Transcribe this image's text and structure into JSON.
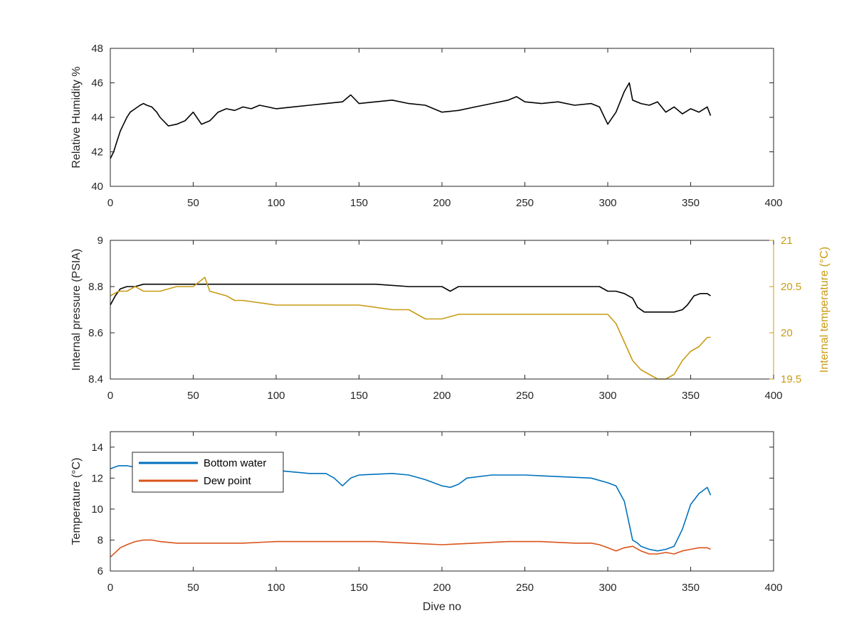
{
  "chart_data": [
    {
      "type": "line",
      "xlabel": "",
      "ylabel": "Relative Humidity %",
      "xlim": [
        0,
        400
      ],
      "ylim": [
        40,
        48
      ],
      "xticks": [
        0,
        50,
        100,
        150,
        200,
        250,
        300,
        350,
        400
      ],
      "yticks": [
        40,
        42,
        44,
        46,
        48
      ],
      "grid": false,
      "series": [
        {
          "color": "#000000",
          "x": [
            0,
            2,
            4,
            6,
            8,
            10,
            12,
            15,
            18,
            20,
            22,
            25,
            28,
            30,
            35,
            40,
            45,
            50,
            55,
            60,
            65,
            70,
            75,
            80,
            85,
            90,
            95,
            100,
            110,
            120,
            130,
            140,
            145,
            150,
            160,
            170,
            180,
            190,
            200,
            210,
            220,
            230,
            240,
            245,
            250,
            260,
            270,
            280,
            290,
            295,
            300,
            305,
            310,
            313,
            315,
            320,
            325,
            330,
            335,
            340,
            345,
            350,
            355,
            360,
            362
          ],
          "y": [
            41.6,
            42.0,
            42.6,
            43.2,
            43.6,
            44.0,
            44.3,
            44.5,
            44.7,
            44.8,
            44.7,
            44.6,
            44.3,
            44.0,
            43.5,
            43.6,
            43.8,
            44.3,
            43.6,
            43.8,
            44.3,
            44.5,
            44.4,
            44.6,
            44.5,
            44.7,
            44.6,
            44.5,
            44.6,
            44.7,
            44.8,
            44.9,
            45.3,
            44.8,
            44.9,
            45.0,
            44.8,
            44.7,
            44.3,
            44.4,
            44.6,
            44.8,
            45.0,
            45.2,
            44.9,
            44.8,
            44.9,
            44.7,
            44.8,
            44.6,
            43.6,
            44.3,
            45.5,
            46.0,
            45.0,
            44.8,
            44.7,
            44.9,
            44.3,
            44.6,
            44.2,
            44.5,
            44.3,
            44.6,
            44.1
          ]
        }
      ]
    },
    {
      "type": "line",
      "xlabel": "",
      "ylabel": "Internal pressure (PSIA)",
      "ylabel_right": "Internal temperature (°C)",
      "xlim": [
        0,
        400
      ],
      "ylim": [
        8.4,
        9
      ],
      "ylim_right": [
        19.5,
        21
      ],
      "xticks": [
        0,
        50,
        100,
        150,
        200,
        250,
        300,
        350,
        400
      ],
      "yticks": [
        "8.4",
        "8.6",
        "8.8",
        "9"
      ],
      "yticks_right": [
        "19.5",
        "20",
        "20.5",
        "21"
      ],
      "grid": false,
      "series": [
        {
          "axis": "left",
          "color": "#000000",
          "x": [
            0,
            3,
            6,
            10,
            15,
            20,
            30,
            40,
            50,
            60,
            70,
            80,
            90,
            100,
            120,
            140,
            160,
            180,
            200,
            205,
            210,
            220,
            240,
            260,
            280,
            295,
            300,
            305,
            310,
            315,
            318,
            322,
            330,
            340,
            345,
            348,
            352,
            356,
            360,
            362
          ],
          "y": [
            8.72,
            8.76,
            8.79,
            8.8,
            8.8,
            8.81,
            8.81,
            8.81,
            8.81,
            8.81,
            8.81,
            8.81,
            8.81,
            8.81,
            8.81,
            8.81,
            8.81,
            8.8,
            8.8,
            8.78,
            8.8,
            8.8,
            8.8,
            8.8,
            8.8,
            8.8,
            8.78,
            8.78,
            8.77,
            8.75,
            8.71,
            8.69,
            8.69,
            8.69,
            8.7,
            8.72,
            8.76,
            8.77,
            8.77,
            8.76
          ]
        },
        {
          "axis": "right",
          "color": "#C89B14",
          "x": [
            0,
            5,
            10,
            15,
            20,
            30,
            40,
            50,
            57,
            60,
            70,
            75,
            80,
            100,
            120,
            150,
            170,
            180,
            190,
            200,
            210,
            220,
            230,
            240,
            250,
            260,
            270,
            280,
            290,
            300,
            305,
            310,
            315,
            320,
            325,
            330,
            335,
            340,
            345,
            350,
            355,
            360,
            362
          ],
          "y": [
            20.4,
            20.45,
            20.45,
            20.5,
            20.45,
            20.45,
            20.5,
            20.5,
            20.6,
            20.45,
            20.4,
            20.35,
            20.35,
            20.3,
            20.3,
            20.3,
            20.25,
            20.25,
            20.15,
            20.15,
            20.2,
            20.2,
            20.2,
            20.2,
            20.2,
            20.2,
            20.2,
            20.2,
            20.2,
            20.2,
            20.1,
            19.9,
            19.7,
            19.6,
            19.55,
            19.5,
            19.5,
            19.55,
            19.7,
            19.8,
            19.85,
            19.95,
            19.95
          ]
        }
      ]
    },
    {
      "type": "line",
      "xlabel": "Dive no",
      "ylabel": "Temperature (°C)",
      "xlim": [
        0,
        400
      ],
      "ylim": [
        6,
        15
      ],
      "xticks": [
        0,
        50,
        100,
        150,
        200,
        250,
        300,
        350,
        400
      ],
      "yticks": [
        6,
        8,
        10,
        12,
        14
      ],
      "grid": false,
      "legend": "top-left",
      "series": [
        {
          "name": "Bottom water",
          "color": "#0072BD",
          "x": [
            0,
            5,
            10,
            15,
            20,
            40,
            60,
            80,
            100,
            120,
            130,
            135,
            140,
            145,
            150,
            170,
            180,
            190,
            200,
            205,
            210,
            215,
            230,
            250,
            270,
            290,
            300,
            305,
            310,
            313,
            315,
            318,
            320,
            325,
            330,
            335,
            340,
            345,
            350,
            355,
            360,
            362
          ],
          "y": [
            12.6,
            12.8,
            12.8,
            12.7,
            12.6,
            12.6,
            12.6,
            12.5,
            12.5,
            12.3,
            12.3,
            12.0,
            11.5,
            12.0,
            12.2,
            12.3,
            12.2,
            11.9,
            11.5,
            11.4,
            11.6,
            12.0,
            12.2,
            12.2,
            12.1,
            12.0,
            11.7,
            11.5,
            10.5,
            9.0,
            8.0,
            7.8,
            7.6,
            7.4,
            7.3,
            7.4,
            7.6,
            8.7,
            10.3,
            11.0,
            11.4,
            10.9
          ]
        },
        {
          "name": "Dew point",
          "color": "#D95319",
          "x": [
            0,
            3,
            6,
            10,
            15,
            20,
            25,
            30,
            40,
            60,
            80,
            100,
            120,
            140,
            160,
            180,
            200,
            220,
            240,
            260,
            280,
            290,
            295,
            300,
            305,
            310,
            315,
            320,
            325,
            330,
            335,
            340,
            345,
            350,
            355,
            360,
            362
          ],
          "y": [
            6.9,
            7.2,
            7.5,
            7.7,
            7.9,
            8.0,
            8.0,
            7.9,
            7.8,
            7.8,
            7.8,
            7.9,
            7.9,
            7.9,
            7.9,
            7.8,
            7.7,
            7.8,
            7.9,
            7.9,
            7.8,
            7.8,
            7.7,
            7.5,
            7.3,
            7.5,
            7.6,
            7.3,
            7.1,
            7.1,
            7.2,
            7.1,
            7.3,
            7.4,
            7.5,
            7.5,
            7.4
          ]
        }
      ]
    }
  ]
}
